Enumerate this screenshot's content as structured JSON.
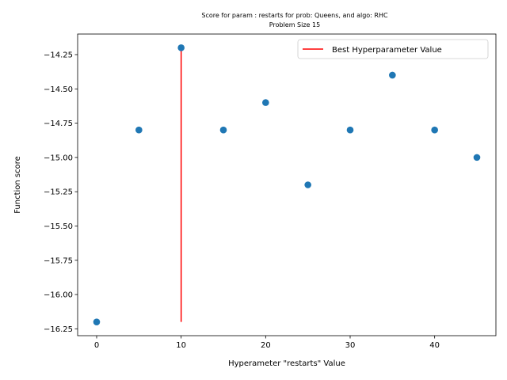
{
  "chart_data": {
    "type": "scatter",
    "title": "Score for param : restarts for prob: Queens, and algo: RHC",
    "subtitle": "Problem Size 15",
    "xlabel": "Hyperameter \"restarts\" Value",
    "ylabel": "Function score",
    "xlim": [
      -2.25,
      47.25
    ],
    "ylim": [
      -16.3,
      -14.1
    ],
    "xticks": [
      0,
      10,
      20,
      30,
      40
    ],
    "xtick_labels": [
      "0",
      "10",
      "20",
      "30",
      "40"
    ],
    "yticks": [
      -16.25,
      -16.0,
      -15.75,
      -15.5,
      -15.25,
      -15.0,
      -14.75,
      -14.5,
      -14.25
    ],
    "ytick_labels": [
      "−16.25",
      "−16.00",
      "−15.75",
      "−15.50",
      "−15.25",
      "−15.00",
      "−14.75",
      "−14.50",
      "−14.25"
    ],
    "grid": false,
    "legend_position": "top-right",
    "series": [
      {
        "kind": "scatter",
        "color": "#1f77b4",
        "x": [
          0,
          5,
          10,
          15,
          20,
          25,
          30,
          35,
          40,
          45
        ],
        "y": [
          -16.2,
          -14.8,
          -14.2,
          -14.8,
          -14.6,
          -15.2,
          -14.8,
          -14.4,
          -14.8,
          -15.0
        ]
      },
      {
        "kind": "vline",
        "name": "Best Hyperparameter Value",
        "color": "#ff0000",
        "x": 10,
        "y_range": [
          -16.2,
          -14.2
        ]
      }
    ]
  }
}
